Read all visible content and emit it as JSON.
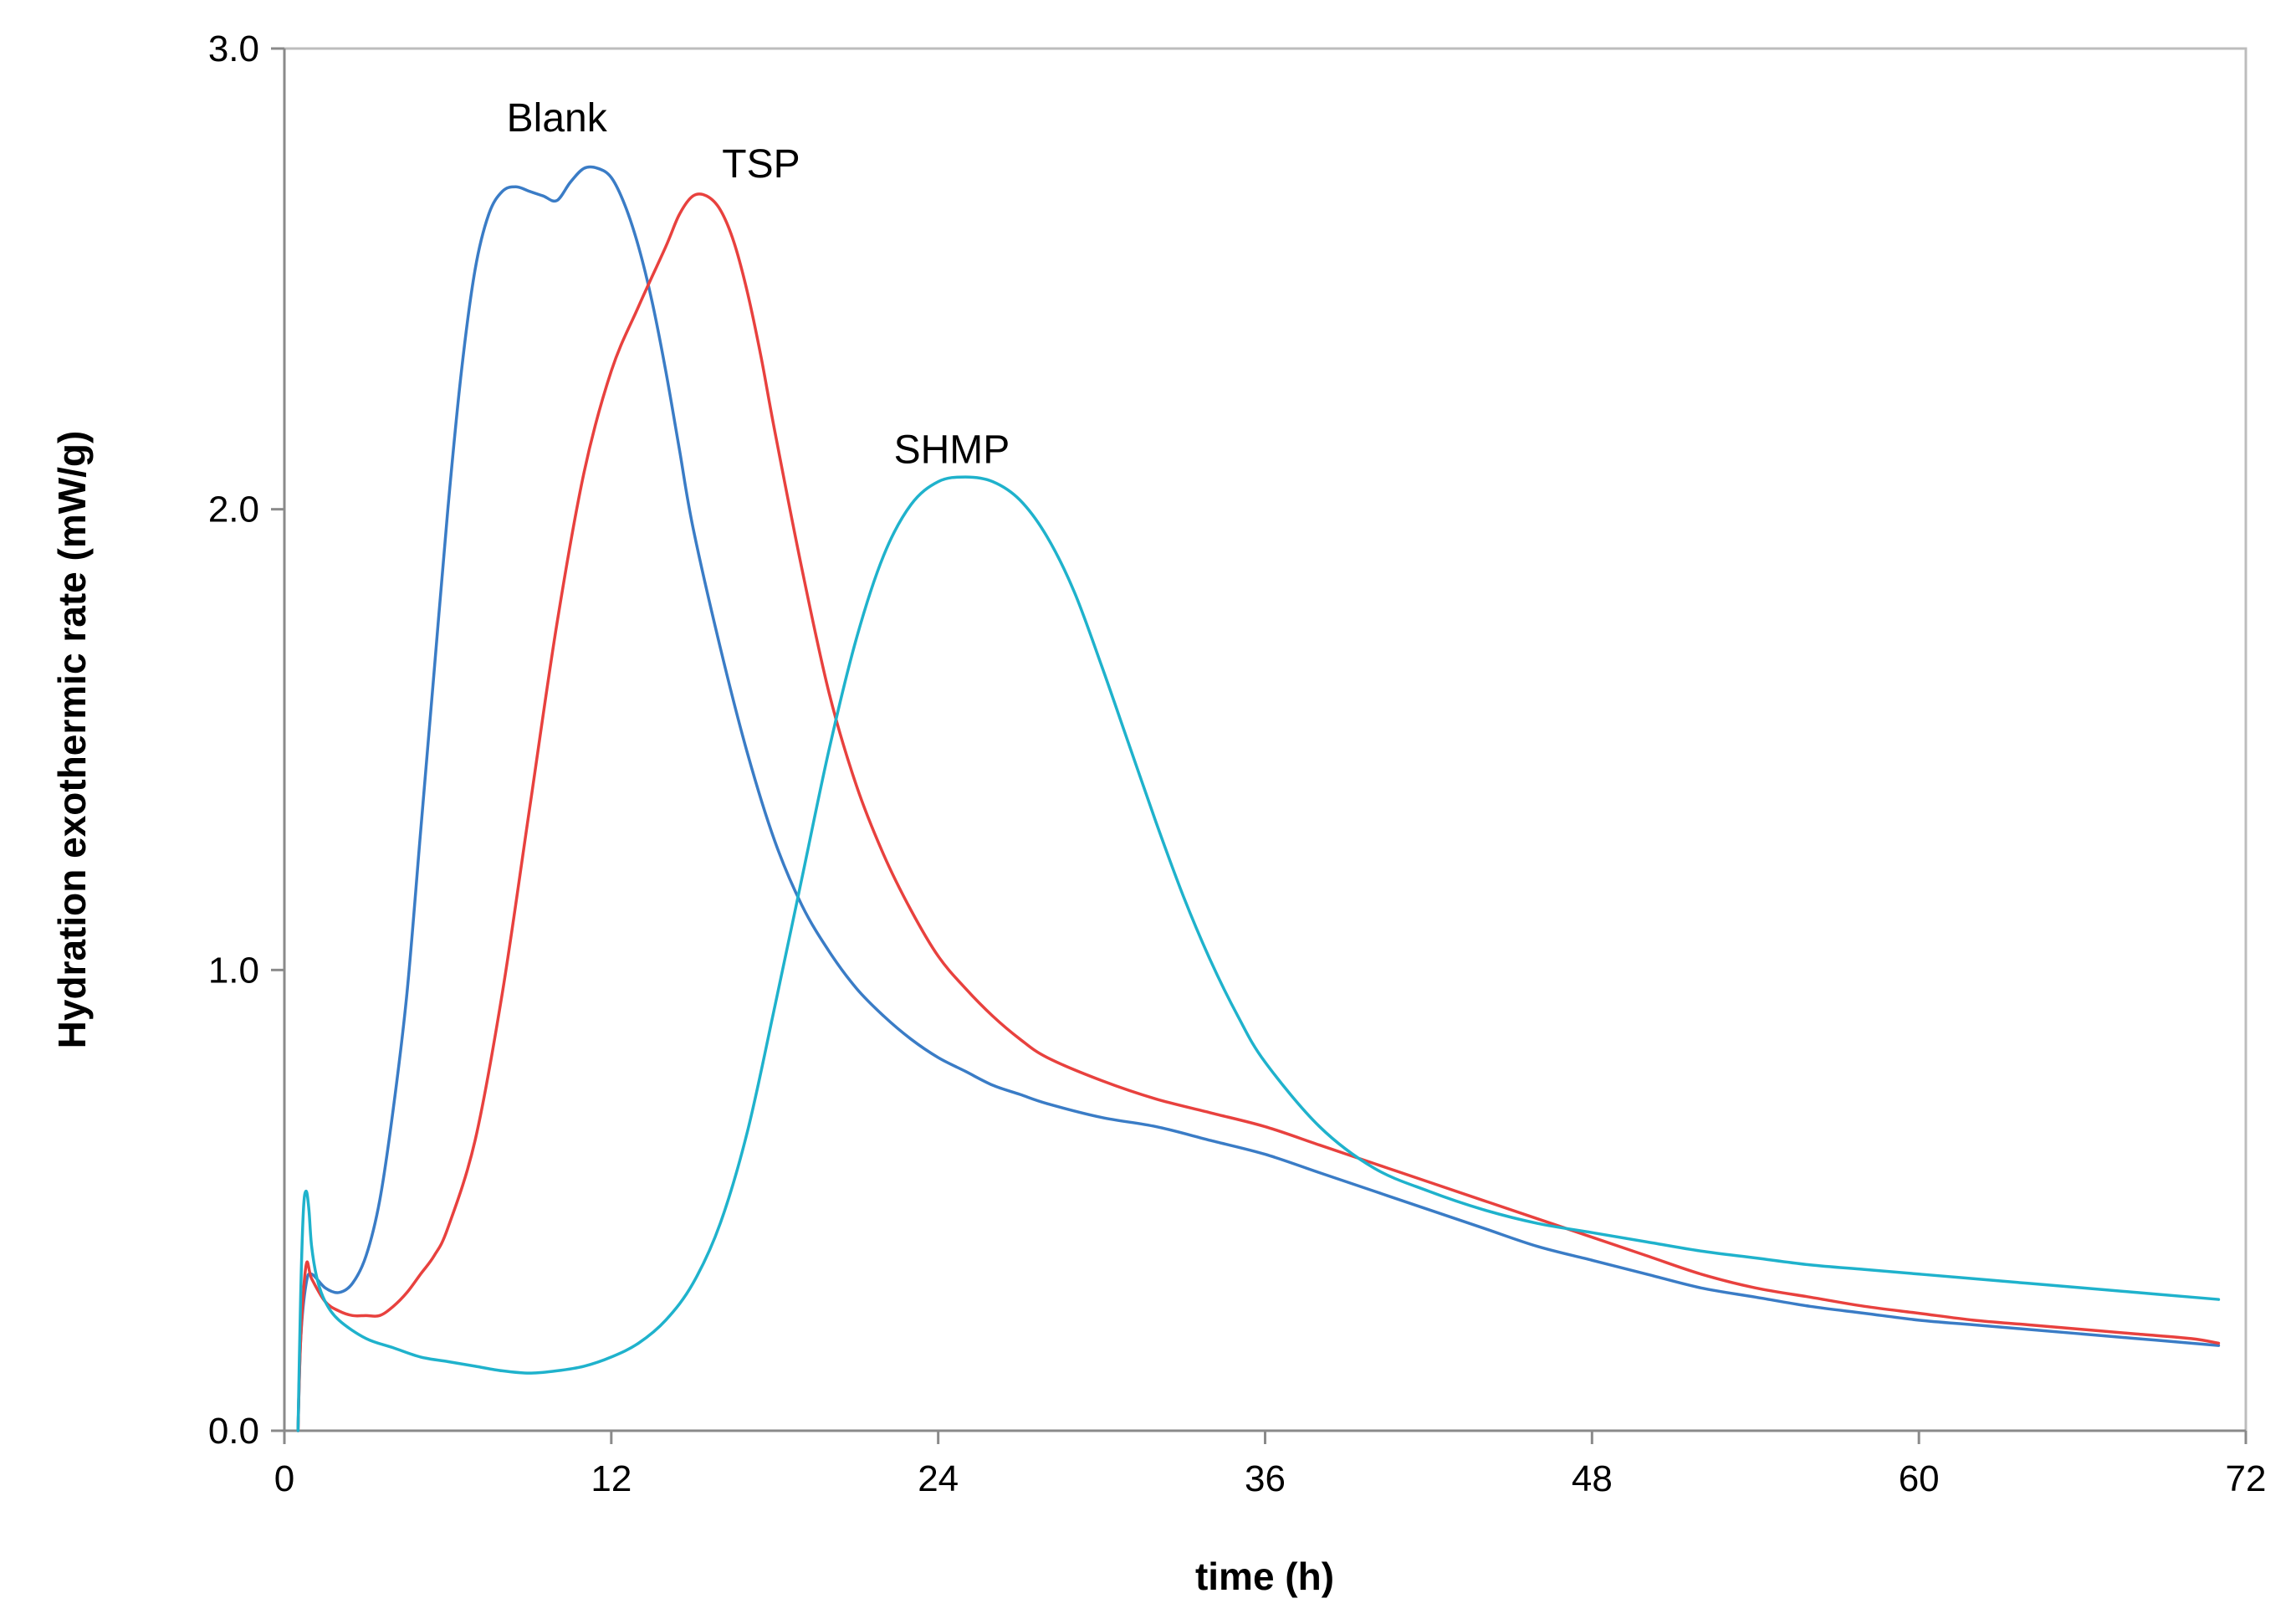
{
  "chart_data": {
    "type": "line",
    "title": "",
    "xlabel": "time (h)",
    "ylabel": "Hydration exothermic rate (mW/g)",
    "xlim": [
      0,
      72
    ],
    "ylim": [
      0,
      3
    ],
    "xticks": [
      0,
      12,
      24,
      36,
      48,
      60,
      72
    ],
    "yticks": [
      0,
      1,
      2,
      3
    ],
    "xtick_labels": [
      "0",
      "12",
      "24",
      "36",
      "48",
      "60",
      "72"
    ],
    "ytick_labels": [
      "0.0",
      "1.0",
      "2.0",
      "3.0"
    ],
    "grid": false,
    "series": [
      {
        "name": "Blank",
        "color": "#3a7cc6",
        "label_at": [
          10,
          2.82
        ],
        "x": [
          0.5,
          0.6,
          0.8,
          1.0,
          1.5,
          2.0,
          2.5,
          3.0,
          3.5,
          4.0,
          4.5,
          5.0,
          5.5,
          6.0,
          6.5,
          7.0,
          7.5,
          8.0,
          8.5,
          9.0,
          9.5,
          10.0,
          10.5,
          11.0,
          11.5,
          12.0,
          12.5,
          13.0,
          13.5,
          14.0,
          14.5,
          15.0,
          16.0,
          17.0,
          18.0,
          19.0,
          20.0,
          21.0,
          22.0,
          23.0,
          24.0,
          25.0,
          26.0,
          27.0,
          28.0,
          30.0,
          32.0,
          34.0,
          36.0,
          38.0,
          40.0,
          42.0,
          44.0,
          46.0,
          48.0,
          50.0,
          52.0,
          54.0,
          56.0,
          58.0,
          60.0,
          62.0,
          64.0,
          66.0,
          68.0,
          70.0,
          71.0
        ],
        "y": [
          0.0,
          0.2,
          0.32,
          0.34,
          0.31,
          0.3,
          0.32,
          0.38,
          0.5,
          0.7,
          0.95,
          1.3,
          1.65,
          2.0,
          2.3,
          2.52,
          2.64,
          2.69,
          2.7,
          2.69,
          2.68,
          2.67,
          2.71,
          2.74,
          2.74,
          2.72,
          2.66,
          2.57,
          2.45,
          2.3,
          2.13,
          1.96,
          1.7,
          1.47,
          1.28,
          1.14,
          1.04,
          0.96,
          0.9,
          0.85,
          0.81,
          0.78,
          0.75,
          0.73,
          0.71,
          0.68,
          0.66,
          0.63,
          0.6,
          0.56,
          0.52,
          0.48,
          0.44,
          0.4,
          0.37,
          0.34,
          0.31,
          0.29,
          0.27,
          0.255,
          0.24,
          0.23,
          0.22,
          0.21,
          0.2,
          0.19,
          0.185
        ]
      },
      {
        "name": "TSP",
        "color": "#e8413e",
        "label_at": [
          17.5,
          2.72
        ],
        "x": [
          0.5,
          0.6,
          0.8,
          1.0,
          1.5,
          2.0,
          2.5,
          3.0,
          3.5,
          4.0,
          4.5,
          5.0,
          5.5,
          6.0,
          7.0,
          8.0,
          9.0,
          10.0,
          11.0,
          12.0,
          13.0,
          14.0,
          14.5,
          15.0,
          15.5,
          16.0,
          16.5,
          17.0,
          17.5,
          18.0,
          19.0,
          20.0,
          21.0,
          22.0,
          23.0,
          24.0,
          25.0,
          26.0,
          27.0,
          28.0,
          30.0,
          32.0,
          34.0,
          36.0,
          38.0,
          40.0,
          42.0,
          44.0,
          46.0,
          48.0,
          50.0,
          52.0,
          54.0,
          56.0,
          58.0,
          60.0,
          62.0,
          64.0,
          66.0,
          68.0,
          70.0,
          71.0
        ],
        "y": [
          0.0,
          0.2,
          0.36,
          0.33,
          0.28,
          0.26,
          0.25,
          0.25,
          0.25,
          0.27,
          0.3,
          0.34,
          0.38,
          0.44,
          0.63,
          0.95,
          1.35,
          1.75,
          2.08,
          2.3,
          2.44,
          2.57,
          2.64,
          2.68,
          2.68,
          2.65,
          2.58,
          2.47,
          2.33,
          2.17,
          1.87,
          1.6,
          1.4,
          1.25,
          1.13,
          1.03,
          0.96,
          0.9,
          0.85,
          0.81,
          0.76,
          0.72,
          0.69,
          0.66,
          0.62,
          0.58,
          0.54,
          0.5,
          0.46,
          0.42,
          0.38,
          0.34,
          0.31,
          0.29,
          0.27,
          0.255,
          0.24,
          0.23,
          0.22,
          0.21,
          0.2,
          0.19
        ]
      },
      {
        "name": "SHMP",
        "color": "#1fb2cc",
        "label_at": [
          24.5,
          2.1
        ],
        "x": [
          0.5,
          0.6,
          0.7,
          0.8,
          0.9,
          1.0,
          1.2,
          1.5,
          2.0,
          3.0,
          4.0,
          5.0,
          6.0,
          7.0,
          8.0,
          9.0,
          10.0,
          11.0,
          12.0,
          13.0,
          14.0,
          15.0,
          16.0,
          17.0,
          18.0,
          19.0,
          20.0,
          21.0,
          22.0,
          23.0,
          24.0,
          25.0,
          26.0,
          27.0,
          28.0,
          29.0,
          30.0,
          31.0,
          32.0,
          33.0,
          34.0,
          35.0,
          36.0,
          38.0,
          40.0,
          42.0,
          44.0,
          46.0,
          48.0,
          50.0,
          52.0,
          54.0,
          56.0,
          58.0,
          60.0,
          62.0,
          64.0,
          66.0,
          68.0,
          70.0,
          71.0
        ],
        "y": [
          0.0,
          0.3,
          0.48,
          0.52,
          0.48,
          0.4,
          0.33,
          0.28,
          0.24,
          0.2,
          0.18,
          0.16,
          0.15,
          0.14,
          0.13,
          0.125,
          0.13,
          0.14,
          0.16,
          0.19,
          0.24,
          0.32,
          0.45,
          0.65,
          0.92,
          1.2,
          1.48,
          1.72,
          1.9,
          2.01,
          2.06,
          2.07,
          2.06,
          2.02,
          1.94,
          1.82,
          1.66,
          1.49,
          1.32,
          1.16,
          1.02,
          0.9,
          0.8,
          0.66,
          0.57,
          0.52,
          0.48,
          0.45,
          0.43,
          0.41,
          0.39,
          0.375,
          0.36,
          0.35,
          0.34,
          0.33,
          0.32,
          0.31,
          0.3,
          0.29,
          0.285
        ]
      }
    ]
  }
}
